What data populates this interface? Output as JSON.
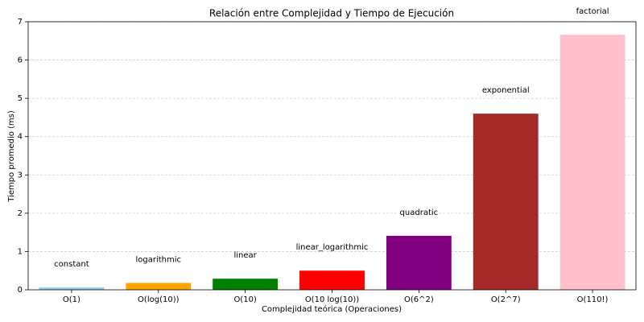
{
  "chart_data": {
    "type": "bar",
    "title": "Relación entre Complejidad y Tiempo de Ejecución",
    "x_label": "Complejidad teórica (Operaciones)",
    "y_label": "Tiempo promedio (ms)",
    "categories": [
      "O(1)",
      "O(log(10))",
      "O(10)",
      "O(10 log(10))",
      "O(6^2)",
      "O(2^7)",
      "O(110!)"
    ],
    "values": [
      0.06,
      0.18,
      0.29,
      0.5,
      1.41,
      4.6,
      6.66
    ],
    "colors": [
      "#87ceeb",
      "#ffa500",
      "#008000",
      "#ff0000",
      "#800080",
      "#a52a2a",
      "#ffc0cb"
    ],
    "annotations": [
      "constant",
      "logarithmic",
      "linear",
      "linear_logarithmic",
      "quadratic",
      "exponential",
      "factorial"
    ],
    "ylim": [
      0,
      7
    ],
    "yticks": [
      0,
      1,
      2,
      3,
      4,
      5,
      6,
      7
    ],
    "grid": true
  }
}
